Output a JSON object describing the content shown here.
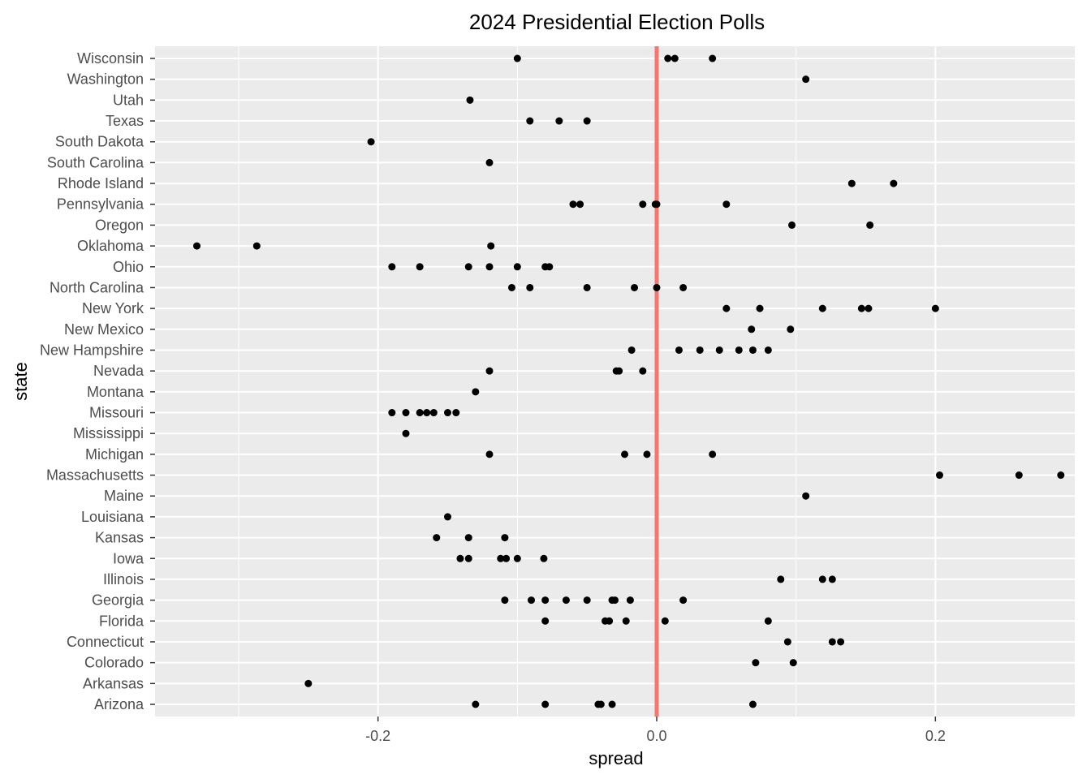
{
  "chart_data": {
    "type": "scatter",
    "title": "2024 Presidential Election Polls",
    "xlabel": "spread",
    "ylabel": "state",
    "xlim": [
      -0.36,
      0.3
    ],
    "x_ticks": [
      -0.2,
      0.0,
      0.2
    ],
    "x_tick_labels": [
      "-0.2",
      "0.0",
      "0.2"
    ],
    "reference_line": {
      "x": 0,
      "color": "#f8766d"
    },
    "grid": true,
    "legend": "none",
    "panel_background": "#ebebeb",
    "grid_color": "#ffffff",
    "point_color": "#000000",
    "categories": [
      "Arizona",
      "Arkansas",
      "Colorado",
      "Connecticut",
      "Florida",
      "Georgia",
      "Illinois",
      "Iowa",
      "Kansas",
      "Louisiana",
      "Maine",
      "Massachusetts",
      "Michigan",
      "Mississippi",
      "Missouri",
      "Montana",
      "Nevada",
      "New Hampshire",
      "New Mexico",
      "New York",
      "North Carolina",
      "Ohio",
      "Oklahoma",
      "Oregon",
      "Pennsylvania",
      "Rhode Island",
      "South Carolina",
      "South Dakota",
      "Texas",
      "Utah",
      "Washington",
      "Wisconsin"
    ],
    "points": [
      {
        "state": "Wisconsin",
        "spread": [
          -0.1,
          0.008,
          0.013,
          0.04
        ]
      },
      {
        "state": "Washington",
        "spread": [
          0.107
        ]
      },
      {
        "state": "Utah",
        "spread": [
          -0.134
        ]
      },
      {
        "state": "Texas",
        "spread": [
          -0.091,
          -0.07,
          -0.05
        ]
      },
      {
        "state": "South Dakota",
        "spread": [
          -0.205
        ]
      },
      {
        "state": "South Carolina",
        "spread": [
          -0.12
        ]
      },
      {
        "state": "Rhode Island",
        "spread": [
          0.14,
          0.17
        ]
      },
      {
        "state": "Pennsylvania",
        "spread": [
          -0.06,
          -0.055,
          -0.01,
          -0.001,
          0.0,
          0.05
        ]
      },
      {
        "state": "Oregon",
        "spread": [
          0.097,
          0.153
        ]
      },
      {
        "state": "Oklahoma",
        "spread": [
          -0.33,
          -0.287,
          -0.119
        ]
      },
      {
        "state": "Ohio",
        "spread": [
          -0.19,
          -0.17,
          -0.135,
          -0.12,
          -0.1,
          -0.08,
          -0.077
        ]
      },
      {
        "state": "North Carolina",
        "spread": [
          -0.104,
          -0.091,
          -0.05,
          -0.016,
          0.0,
          0.019
        ]
      },
      {
        "state": "New York",
        "spread": [
          0.05,
          0.074,
          0.119,
          0.147,
          0.152,
          0.2
        ]
      },
      {
        "state": "New Mexico",
        "spread": [
          0.068,
          0.096
        ]
      },
      {
        "state": "New Hampshire",
        "spread": [
          -0.018,
          0.016,
          0.031,
          0.045,
          0.059,
          0.069,
          0.08
        ]
      },
      {
        "state": "Nevada",
        "spread": [
          -0.12,
          -0.029,
          -0.027,
          -0.01
        ]
      },
      {
        "state": "Montana",
        "spread": [
          -0.13
        ]
      },
      {
        "state": "Missouri",
        "spread": [
          -0.19,
          -0.18,
          -0.17,
          -0.165,
          -0.16,
          -0.15,
          -0.144
        ]
      },
      {
        "state": "Mississippi",
        "spread": [
          -0.18
        ]
      },
      {
        "state": "Michigan",
        "spread": [
          -0.12,
          -0.023,
          -0.007,
          0.04
        ]
      },
      {
        "state": "Massachusetts",
        "spread": [
          0.203,
          0.26,
          0.29
        ]
      },
      {
        "state": "Maine",
        "spread": [
          0.107
        ]
      },
      {
        "state": "Louisiana",
        "spread": [
          -0.15
        ]
      },
      {
        "state": "Kansas",
        "spread": [
          -0.158,
          -0.135,
          -0.109
        ]
      },
      {
        "state": "Iowa",
        "spread": [
          -0.141,
          -0.135,
          -0.112,
          -0.108,
          -0.1,
          -0.081
        ]
      },
      {
        "state": "Illinois",
        "spread": [
          0.089,
          0.119,
          0.126
        ]
      },
      {
        "state": "Georgia",
        "spread": [
          -0.109,
          -0.09,
          -0.08,
          -0.065,
          -0.05,
          -0.032,
          -0.03,
          -0.019,
          0.019
        ]
      },
      {
        "state": "Florida",
        "spread": [
          -0.08,
          -0.037,
          -0.034,
          -0.022,
          0.006,
          0.08
        ]
      },
      {
        "state": "Connecticut",
        "spread": [
          0.094,
          0.126,
          0.132
        ]
      },
      {
        "state": "Colorado",
        "spread": [
          0.071,
          0.098
        ]
      },
      {
        "state": "Arkansas",
        "spread": [
          -0.25
        ]
      },
      {
        "state": "Arizona",
        "spread": [
          -0.13,
          -0.08,
          -0.042,
          -0.04,
          -0.032,
          0.069
        ]
      }
    ]
  }
}
